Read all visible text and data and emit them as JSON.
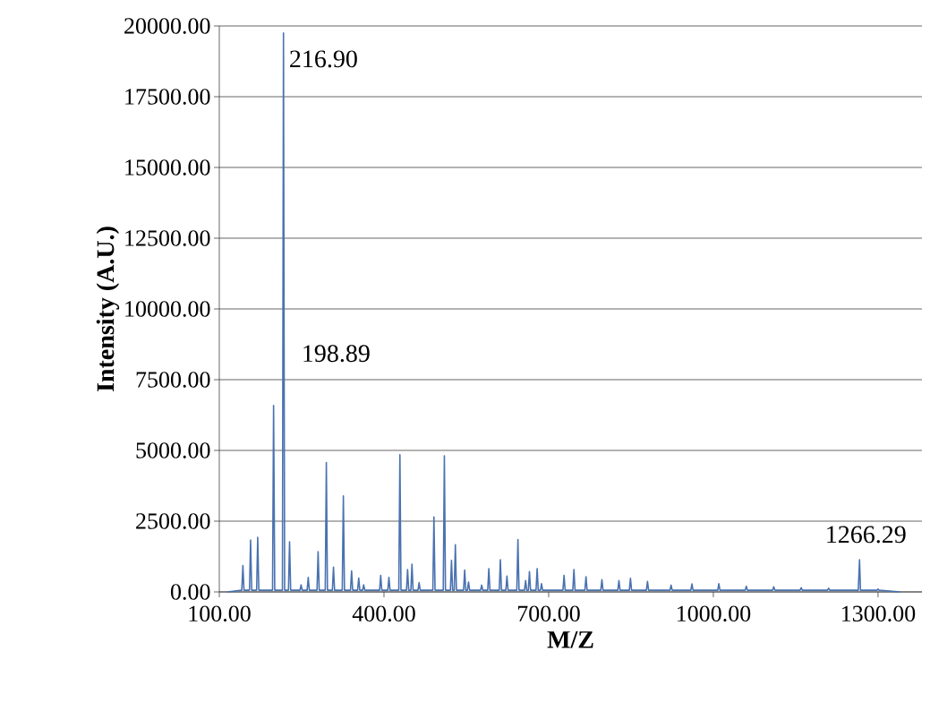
{
  "chart_data": {
    "type": "line",
    "xlabel": "M/Z",
    "ylabel": "Intensity (A.U.)",
    "x": [
      115,
      141,
      143,
      145,
      155,
      157,
      159,
      168,
      170,
      172,
      197,
      198.89,
      201,
      215,
      216.9,
      219,
      226,
      228,
      230,
      247,
      249,
      251,
      260,
      262,
      264,
      278,
      280,
      282,
      293,
      295,
      297,
      306,
      308,
      310,
      324,
      326,
      328,
      339,
      341,
      343,
      352,
      354,
      356,
      361,
      363,
      365,
      392,
      394,
      396,
      407,
      409,
      411,
      427,
      429,
      431,
      441,
      443,
      445,
      449,
      451,
      453,
      462,
      464,
      466,
      489,
      491,
      493,
      508,
      510,
      512,
      521,
      523,
      525,
      528,
      530,
      532,
      545,
      547,
      549,
      552,
      554,
      556,
      576,
      578,
      580,
      589,
      591,
      593,
      610,
      612,
      614,
      622,
      624,
      626,
      642,
      644,
      646,
      656,
      658,
      660,
      663,
      665,
      667,
      677,
      679,
      681,
      685,
      687,
      689,
      726,
      728,
      730,
      744,
      746,
      748,
      766,
      768,
      770,
      795,
      797,
      799,
      826,
      828,
      830,
      847,
      849,
      851,
      878,
      880,
      882,
      921,
      923,
      925,
      959,
      961,
      963,
      1008,
      1010,
      1012,
      1058,
      1060,
      1062,
      1108,
      1110,
      1112,
      1158,
      1160,
      1162,
      1208,
      1210,
      1212,
      1264,
      1266.29,
      1268,
      1298,
      1300,
      1302,
      1340
    ],
    "series": [
      {
        "color": "#4a72b0",
        "values": [
          0,
          60,
          930,
          60,
          60,
          1830,
          60,
          60,
          1930,
          60,
          60,
          6590,
          60,
          60,
          19750,
          60,
          60,
          1770,
          60,
          60,
          250,
          60,
          60,
          510,
          60,
          60,
          1420,
          60,
          60,
          4570,
          60,
          60,
          880,
          60,
          60,
          3390,
          60,
          60,
          740,
          60,
          60,
          490,
          60,
          60,
          250,
          60,
          60,
          580,
          60,
          60,
          510,
          60,
          60,
          4850,
          60,
          60,
          790,
          60,
          60,
          980,
          60,
          60,
          330,
          60,
          60,
          2650,
          60,
          60,
          4810,
          60,
          60,
          1110,
          60,
          60,
          1670,
          60,
          60,
          770,
          60,
          60,
          350,
          60,
          60,
          240,
          60,
          60,
          820,
          60,
          60,
          1140,
          60,
          60,
          560,
          60,
          60,
          1850,
          60,
          60,
          400,
          60,
          60,
          720,
          60,
          60,
          820,
          60,
          60,
          290,
          60,
          60,
          580,
          60,
          60,
          790,
          60,
          60,
          540,
          60,
          60,
          430,
          60,
          60,
          400,
          60,
          60,
          480,
          60,
          60,
          370,
          60,
          60,
          240,
          60,
          60,
          280,
          60,
          60,
          290,
          60,
          60,
          200,
          60,
          60,
          180,
          60,
          60,
          150,
          60,
          60,
          130,
          60,
          60,
          1140,
          60,
          60,
          100,
          60,
          0
        ]
      }
    ],
    "xlim": [
      100,
      1380
    ],
    "ylim": [
      0,
      20000
    ],
    "xticks": [
      {
        "value": 100,
        "label": "100.00"
      },
      {
        "value": 400,
        "label": "400.00"
      },
      {
        "value": 700,
        "label": "700.00"
      },
      {
        "value": 1000,
        "label": "1000.00"
      },
      {
        "value": 1300,
        "label": "1300.00"
      }
    ],
    "yticks": [
      {
        "value": 0,
        "label": "0.00"
      },
      {
        "value": 2500,
        "label": "2500.00"
      },
      {
        "value": 5000,
        "label": "5000.00"
      },
      {
        "value": 7500,
        "label": "7500.00"
      },
      {
        "value": 10000,
        "label": "10000.00"
      },
      {
        "value": 12500,
        "label": "12500.00"
      },
      {
        "value": 15000,
        "label": "15000.00"
      },
      {
        "value": 17500,
        "label": "17500.00"
      },
      {
        "value": 20000,
        "label": "20000.00"
      }
    ],
    "grid": "y",
    "annotations": [
      {
        "text": "216.90",
        "x": 216.9,
        "y": 19750
      },
      {
        "text": "198.89",
        "x": 198.89,
        "y": 6590
      },
      {
        "text": "1266.29",
        "x": 1266.29,
        "y": 1140
      }
    ]
  }
}
